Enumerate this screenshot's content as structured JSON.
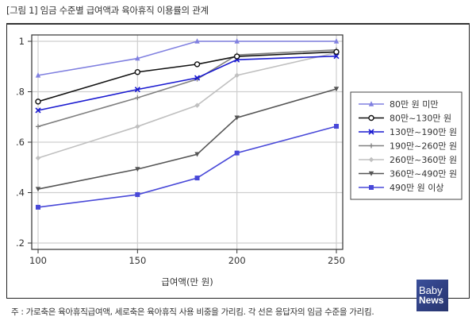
{
  "figure": {
    "title": "[그림 1] 임금 수준별 급여액과 육아휴직 이용률의 관계",
    "footnote": "주 : 가로축은 육아휴직급여액, 세로축은 육아휴직 사용 비중을 가리킴. 각 선은 응답자의 임금 수준을 가리킴.",
    "logo": {
      "line1": "Baby",
      "line2": "News"
    }
  },
  "chart_data": {
    "type": "line",
    "title": "[그림 1] 임금 수준별 급여액과 육아휴직 이용률의 관계",
    "xlabel": "급여액(만 원)",
    "ylabel": "",
    "x": [
      100,
      150,
      180,
      200,
      250
    ],
    "xticks": [
      100,
      150,
      200,
      250
    ],
    "xtick_labels": [
      "100",
      "150",
      "200",
      "250"
    ],
    "yticks": [
      0.2,
      0.4,
      0.6,
      0.8,
      1.0
    ],
    "ytick_labels": [
      ".2",
      ".4",
      ".6",
      ".8",
      "1"
    ],
    "xlim": [
      97,
      253
    ],
    "ylim": [
      0.175,
      1.025
    ],
    "grid": true,
    "legend_position": "right",
    "series": [
      {
        "name": "80만 원 미만",
        "color": "#8080e0",
        "marker": "triangle-up",
        "values": [
          0.865,
          0.932,
          1.0,
          1.0,
          1.0
        ]
      },
      {
        "name": "80만~130만 원",
        "color": "#111111",
        "marker": "circle-open",
        "values": [
          0.761,
          0.878,
          0.909,
          0.94,
          0.958
        ]
      },
      {
        "name": "130만~190만 원",
        "color": "#1a1ad0",
        "marker": "x",
        "values": [
          0.726,
          0.809,
          0.855,
          0.927,
          0.941
        ]
      },
      {
        "name": "190만~260만 원",
        "color": "#808080",
        "marker": "plus",
        "values": [
          0.662,
          0.776,
          0.85,
          0.946,
          0.966
        ]
      },
      {
        "name": "260만~360만 원",
        "color": "#c0c0c0",
        "marker": "diamond",
        "values": [
          0.537,
          0.662,
          0.746,
          0.865,
          0.955
        ]
      },
      {
        "name": "360만~490만 원",
        "color": "#555555",
        "marker": "triangle-down",
        "values": [
          0.414,
          0.493,
          0.552,
          0.697,
          0.811
        ]
      },
      {
        "name": "490만 원 이상",
        "color": "#4848d8",
        "marker": "square",
        "values": [
          0.342,
          0.392,
          0.458,
          0.557,
          0.663
        ]
      }
    ]
  }
}
